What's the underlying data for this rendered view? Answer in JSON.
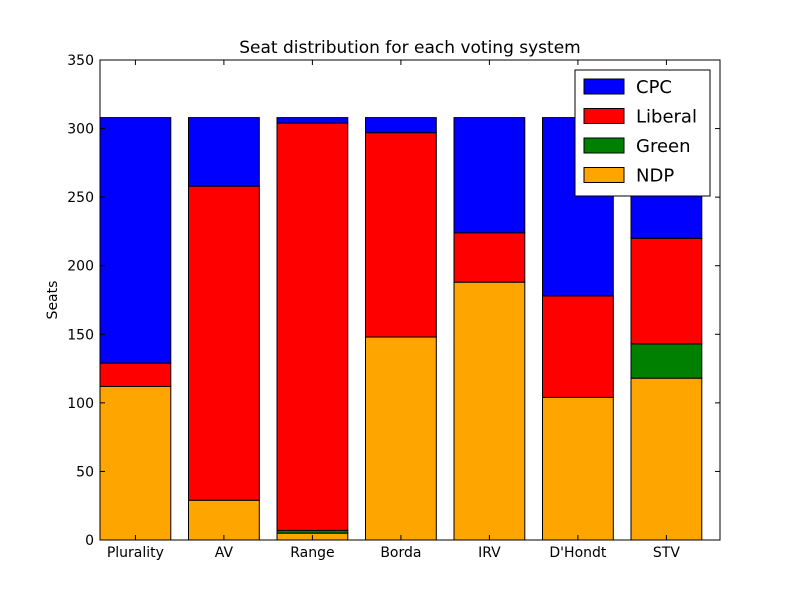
{
  "chart_data": {
    "type": "bar",
    "stacked": true,
    "title": "Seat distribution for each voting system",
    "xlabel": "",
    "ylabel": "Seats",
    "ylim": [
      0,
      350
    ],
    "yticks": [
      0,
      50,
      100,
      150,
      200,
      250,
      300,
      350
    ],
    "categories": [
      "Plurality",
      "AV",
      "Range",
      "Borda",
      "IRV",
      "D'Hondt",
      "STV"
    ],
    "series": [
      {
        "name": "NDP",
        "color": "#ffa500",
        "values": [
          112,
          29,
          5,
          148,
          188,
          104,
          118
        ]
      },
      {
        "name": "Green",
        "color": "#008000",
        "values": [
          0,
          0,
          2,
          0,
          0,
          0,
          25
        ]
      },
      {
        "name": "Liberal",
        "color": "#ff0000",
        "values": [
          17,
          229,
          297,
          149,
          36,
          74,
          77
        ]
      },
      {
        "name": "CPC",
        "color": "#0000ff",
        "values": [
          179,
          50,
          4,
          11,
          84,
          130,
          88
        ]
      }
    ],
    "legend": {
      "position": "top-right",
      "order": [
        "CPC",
        "Liberal",
        "Green",
        "NDP"
      ]
    },
    "grid": false
  }
}
